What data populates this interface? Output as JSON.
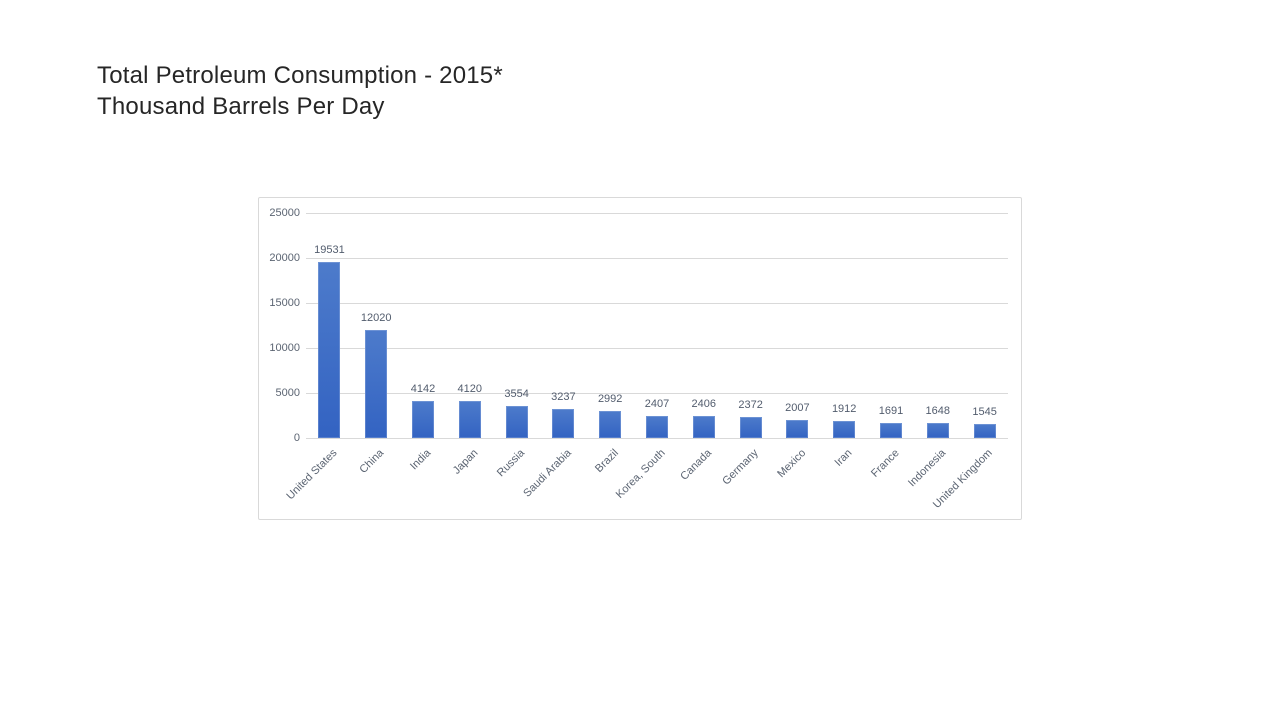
{
  "slide": {
    "title_line1": "Total Petroleum Consumption - 2015*",
    "title_line2": "Thousand Barrels Per Day"
  },
  "colors": {
    "bar_top": "#4d7bcb",
    "bar_bottom": "#3363c2",
    "gridline": "#d9d9d9",
    "chart_border": "#d9d9d9",
    "axis_label": "#5b6472",
    "data_label": "#525c6d",
    "title_text": "#262626",
    "background": "#ffffff"
  },
  "chart_data": {
    "type": "bar",
    "title": "Total Petroleum Consumption - 2015* Thousand Barrels Per Day",
    "xlabel": "",
    "ylabel": "",
    "categories": [
      "United States",
      "China",
      "India",
      "Japan",
      "Russia",
      "Saudi Arabia",
      "Brazil",
      "Korea, South",
      "Canada",
      "Germany",
      "Mexico",
      "Iran",
      "France",
      "Indonesia",
      "United Kingdom"
    ],
    "values": [
      19531,
      12020,
      4142,
      4120,
      3554,
      3237,
      2992,
      2407,
      2406,
      2372,
      2007,
      1912,
      1691,
      1648,
      1545
    ],
    "ylim": [
      0,
      25000
    ],
    "yticks": [
      0,
      5000,
      10000,
      15000,
      20000,
      25000
    ],
    "grid": true,
    "legend": false,
    "data_labels": true,
    "x_label_rotation_deg": -45
  }
}
